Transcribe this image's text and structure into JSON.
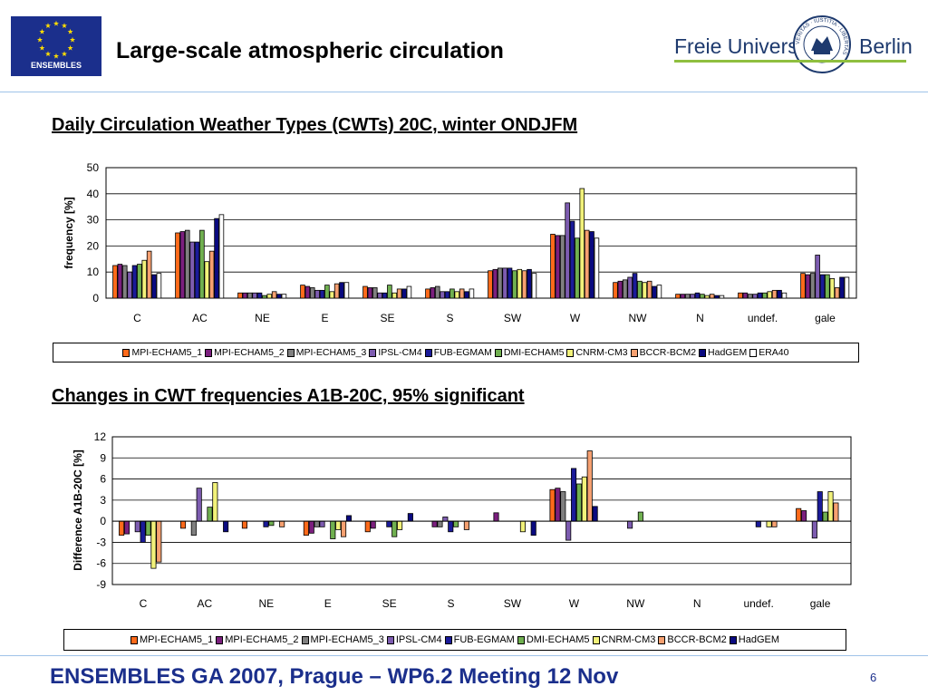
{
  "header": {
    "title": "Large-scale atmospheric circulation",
    "left_logo_text": "ENSEMBLES",
    "right_logo_left": "Freie Universität",
    "right_logo_right": "Berlin",
    "seal_text": "VERITAS · IUSTITIA · LIBERTAS"
  },
  "colors": {
    "series": [
      "#ff6a1a",
      "#7b1f7e",
      "#808080",
      "#7d5cb0",
      "#1a1a99",
      "#70b050",
      "#f2f27a",
      "#f6a070",
      "#0a0a80",
      "#ffffff"
    ],
    "accent": "#1b2f8c"
  },
  "chart_data": [
    {
      "type": "bar",
      "title": "Daily Circulation Weather Types (CWTs) 20C, winter ONDJFM",
      "xlabel": "",
      "ylabel": "frequency [%]",
      "ylim": [
        0,
        50
      ],
      "yticks": [
        0,
        10,
        20,
        30,
        40,
        50
      ],
      "grid": "horizontal",
      "legend": "bottom",
      "categories": [
        "C",
        "AC",
        "NE",
        "E",
        "SE",
        "S",
        "SW",
        "W",
        "NW",
        "N",
        "undef.",
        "gale"
      ],
      "series": [
        {
          "name": "MPI-ECHAM5_1",
          "values": [
            12.5,
            25,
            2,
            5,
            4.5,
            3.5,
            10.5,
            24.5,
            6,
            1.5,
            2,
            9.5
          ]
        },
        {
          "name": "MPI-ECHAM5_2",
          "values": [
            13,
            25.5,
            2,
            4.5,
            4,
            4,
            11,
            24,
            6.5,
            1.5,
            2,
            9
          ]
        },
        {
          "name": "MPI-ECHAM5_3",
          "values": [
            12.5,
            26,
            2,
            4,
            4,
            4.5,
            11.5,
            24,
            7,
            1.5,
            1.5,
            9.5
          ]
        },
        {
          "name": "IPSL-CM4",
          "values": [
            10,
            21.5,
            2,
            3,
            2,
            2.5,
            11.5,
            36.5,
            8,
            1.5,
            1.5,
            16.5
          ]
        },
        {
          "name": "FUB-EGMAM",
          "values": [
            12.5,
            21.5,
            2,
            3,
            2,
            2.5,
            11.5,
            29.5,
            9.5,
            2,
            2,
            9
          ]
        },
        {
          "name": "DMI-ECHAM5",
          "values": [
            13,
            26,
            1,
            5,
            5,
            3.5,
            10.5,
            23,
            6.5,
            1.5,
            2,
            9
          ]
        },
        {
          "name": "CNRM-CM3",
          "values": [
            14.5,
            14,
            1.5,
            2.5,
            2,
            2.5,
            11,
            42,
            6,
            1,
            2.5,
            7.5
          ]
        },
        {
          "name": "BCCR-BCM2",
          "values": [
            18,
            18,
            2.5,
            5.5,
            3.5,
            3.5,
            10.5,
            26,
            6.5,
            1.5,
            3,
            4
          ]
        },
        {
          "name": "HadGEM",
          "values": [
            9,
            30.5,
            1.5,
            6,
            3.5,
            2.5,
            11,
            25.5,
            4.5,
            1,
            3,
            8
          ]
        },
        {
          "name": "ERA40",
          "values": [
            9.5,
            32,
            1.5,
            6,
            4.5,
            3.5,
            9.5,
            23,
            5,
            1,
            2,
            8
          ]
        }
      ]
    },
    {
      "type": "bar",
      "title": "Changes in CWT frequencies A1B-20C, 95% significant",
      "xlabel": "",
      "ylabel": "Difference A1B-20C [%]",
      "ylim": [
        -9,
        12
      ],
      "yticks": [
        -9,
        -6,
        -3,
        0,
        3,
        6,
        9,
        12
      ],
      "grid": "horizontal",
      "legend": "bottom",
      "categories": [
        "C",
        "AC",
        "NE",
        "E",
        "SE",
        "S",
        "SW",
        "W",
        "NW",
        "N",
        "undef.",
        "gale"
      ],
      "series": [
        {
          "name": "MPI-ECHAM5_1",
          "values": [
            -2,
            -1,
            -1,
            -2,
            -1.5,
            0,
            0,
            4.5,
            0,
            0,
            0,
            1.8
          ]
        },
        {
          "name": "MPI-ECHAM5_2",
          "values": [
            -1.8,
            0,
            0,
            -1.7,
            -1,
            -0.8,
            1.2,
            4.7,
            0,
            0,
            0,
            1.5
          ]
        },
        {
          "name": "MPI-ECHAM5_3",
          "values": [
            0,
            -2,
            0,
            -0.8,
            0,
            -0.8,
            0,
            4.2,
            0,
            0,
            0,
            0
          ]
        },
        {
          "name": "IPSL-CM4",
          "values": [
            -1.5,
            4.7,
            0,
            -0.8,
            0,
            0.6,
            0,
            -2.7,
            -1,
            0,
            0,
            -2.4
          ]
        },
        {
          "name": "FUB-EGMAM",
          "values": [
            -3,
            0,
            -0.8,
            0,
            -0.8,
            -1.5,
            0,
            7.5,
            0,
            0,
            -0.8,
            4.2
          ]
        },
        {
          "name": "DMI-ECHAM5",
          "values": [
            -2,
            2,
            -0.6,
            -2.5,
            -2.2,
            -0.8,
            0,
            5.3,
            1.3,
            0,
            0,
            1.3
          ]
        },
        {
          "name": "CNRM-CM3",
          "values": [
            -6.7,
            5.5,
            0,
            -1.2,
            -1.2,
            0,
            -1.5,
            6.3,
            0,
            0,
            -0.8,
            4.2
          ]
        },
        {
          "name": "BCCR-BCM2",
          "values": [
            -5.8,
            0,
            -0.8,
            -2.2,
            0,
            -1.2,
            0,
            10,
            0,
            0,
            -0.8,
            2.6
          ]
        },
        {
          "name": "HadGEM",
          "values": [
            0,
            -1.5,
            0,
            0.8,
            1.1,
            0,
            -2,
            2.1,
            0,
            0,
            0,
            0
          ]
        }
      ]
    }
  ],
  "footer": {
    "text": "ENSEMBLES GA 2007, Prague – WP6.2 Meeting 12 Nov",
    "page": "6"
  }
}
